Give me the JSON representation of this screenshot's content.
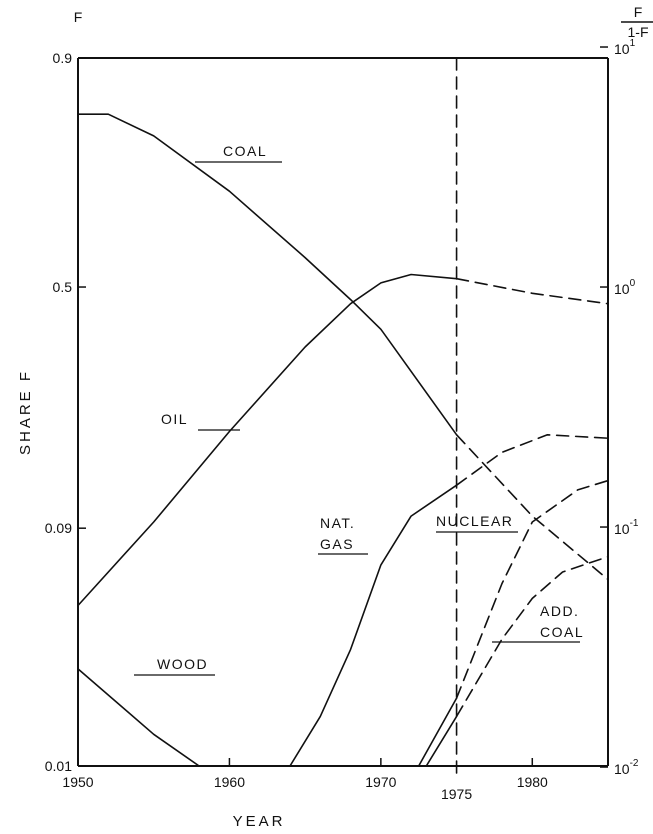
{
  "chart_data": {
    "type": "line",
    "xlabel": "YEAR",
    "ylabel": "SHARE F",
    "xlim": [
      1950,
      1985
    ],
    "ylim": [
      0.01,
      0.9
    ],
    "y_scale": "logit",
    "x_ticks": [
      "1950",
      "1960",
      "1970",
      "1980"
    ],
    "x_marker": {
      "x": 1975,
      "label": "1975"
    },
    "y_ticks_left": [
      "0.9",
      "0.5",
      "0.09",
      "0.01"
    ],
    "left_axis_label": "F",
    "right_axis_label_num": "F",
    "right_axis_label_den": "1-F",
    "y_ticks_right": [
      {
        "base": "10",
        "exp": "1"
      },
      {
        "base": "10",
        "exp": "0"
      },
      {
        "base": "10",
        "exp": "-1"
      },
      {
        "base": "10",
        "exp": "-2"
      }
    ],
    "grid": false,
    "legend": "none",
    "series": [
      {
        "name": "COAL",
        "values": [
          [
            1950,
            0.84
          ],
          [
            1952,
            0.84
          ],
          [
            1955,
            0.81
          ],
          [
            1960,
            0.715
          ],
          [
            1965,
            0.57
          ],
          [
            1968,
            0.47
          ],
          [
            1970,
            0.4
          ],
          [
            1975,
            0.195
          ]
        ],
        "projection": [
          [
            1975,
            0.195
          ],
          [
            1980,
            0.1
          ],
          [
            1985,
            0.057
          ]
        ]
      },
      {
        "name": "OIL",
        "values": [
          [
            1950,
            0.045
          ],
          [
            1955,
            0.095
          ],
          [
            1960,
            0.2
          ],
          [
            1965,
            0.36
          ],
          [
            1968,
            0.46
          ],
          [
            1970,
            0.51
          ],
          [
            1972,
            0.53
          ],
          [
            1975,
            0.52
          ]
        ],
        "projection": [
          [
            1975,
            0.52
          ],
          [
            1980,
            0.485
          ],
          [
            1985,
            0.46
          ]
        ]
      },
      {
        "name": "NAT. GAS",
        "values": [
          [
            1964,
            0.01
          ],
          [
            1966,
            0.016
          ],
          [
            1968,
            0.03
          ],
          [
            1970,
            0.065
          ],
          [
            1972,
            0.1
          ],
          [
            1975,
            0.13
          ]
        ],
        "projection": [
          [
            1975,
            0.13
          ],
          [
            1978,
            0.17
          ],
          [
            1981,
            0.195
          ],
          [
            1985,
            0.19
          ]
        ]
      },
      {
        "name": "NUCLEAR",
        "values": [
          [
            1972.5,
            0.01
          ],
          [
            1975,
            0.019
          ]
        ],
        "projection": [
          [
            1975,
            0.019
          ],
          [
            1978,
            0.055
          ],
          [
            1980,
            0.095
          ],
          [
            1983,
            0.125
          ],
          [
            1985,
            0.135
          ]
        ]
      },
      {
        "name": "ADD. COAL",
        "values": [
          [
            1973,
            0.01
          ],
          [
            1975,
            0.016
          ]
        ],
        "projection": [
          [
            1975,
            0.016
          ],
          [
            1978,
            0.033
          ],
          [
            1980,
            0.048
          ],
          [
            1982,
            0.061
          ],
          [
            1985,
            0.07
          ]
        ]
      },
      {
        "name": "WOOD",
        "values": [
          [
            1950,
            0.025
          ],
          [
            1955,
            0.0135
          ],
          [
            1958,
            0.01
          ]
        ]
      }
    ]
  }
}
